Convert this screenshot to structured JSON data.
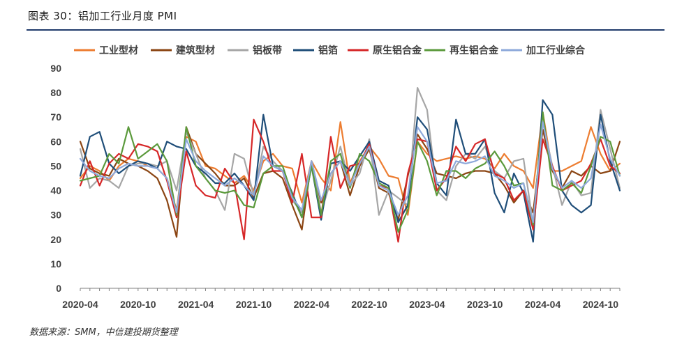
{
  "title": "图表 30：铝加工行业月度 PMI",
  "source": "数据来源：SMM，中信建投期货整理",
  "chart_data": {
    "type": "line",
    "ylim": [
      0,
      90
    ],
    "yticks": [
      0,
      10,
      20,
      30,
      40,
      50,
      60,
      70,
      80,
      90
    ],
    "xtick_labels": [
      "2020-04",
      "2020-10",
      "2021-04",
      "2021-10",
      "2022-04",
      "2022-10",
      "2023-04",
      "2023-10",
      "2024-04",
      "2024-10"
    ],
    "legend_position": "top",
    "x": [
      "2020-04",
      "2020-05",
      "2020-06",
      "2020-07",
      "2020-08",
      "2020-09",
      "2020-10",
      "2020-11",
      "2020-12",
      "2021-01",
      "2021-02",
      "2021-03",
      "2021-04",
      "2021-05",
      "2021-06",
      "2021-07",
      "2021-08",
      "2021-09",
      "2021-10",
      "2021-11",
      "2021-12",
      "2022-01",
      "2022-02",
      "2022-03",
      "2022-04",
      "2022-05",
      "2022-06",
      "2022-07",
      "2022-08",
      "2022-09",
      "2022-10",
      "2022-11",
      "2022-12",
      "2023-01",
      "2023-02",
      "2023-03",
      "2023-04",
      "2023-05",
      "2023-06",
      "2023-07",
      "2023-08",
      "2023-09",
      "2023-10",
      "2023-11",
      "2023-12",
      "2024-01",
      "2024-02",
      "2024-03",
      "2024-04",
      "2024-05",
      "2024-06",
      "2024-07",
      "2024-08",
      "2024-09",
      "2024-10",
      "2024-11",
      "2024-12"
    ],
    "series": [
      {
        "name": "工业型材",
        "color": "#ED7D31",
        "values": [
          45,
          50,
          48,
          44,
          50,
          53,
          52,
          50,
          49,
          45,
          32,
          62,
          60,
          50,
          49,
          46,
          43,
          46,
          40,
          52,
          55,
          50,
          49,
          35,
          52,
          45,
          40,
          68,
          43,
          52,
          58,
          53,
          46,
          45,
          30,
          60,
          55,
          52,
          53,
          54,
          53,
          54,
          53,
          49,
          55,
          50,
          48,
          41,
          72,
          48,
          48,
          50,
          52,
          66,
          55,
          48,
          51
        ]
      },
      {
        "name": "建筑型材",
        "color": "#8B4513",
        "values": [
          60,
          49,
          47,
          46,
          53,
          51,
          50,
          48,
          45,
          36,
          21,
          66,
          55,
          51,
          47,
          42,
          42,
          45,
          37,
          47,
          48,
          45,
          34,
          24,
          52,
          35,
          47,
          52,
          38,
          50,
          57,
          41,
          39,
          28,
          46,
          63,
          57,
          47,
          46,
          45,
          47,
          48,
          48,
          47,
          42,
          35,
          40,
          31,
          65,
          48,
          41,
          48,
          46,
          50,
          47,
          48,
          60
        ]
      },
      {
        "name": "铝板带",
        "color": "#A6A6A6",
        "values": [
          57,
          41,
          45,
          44,
          41,
          50,
          51,
          51,
          50,
          52,
          40,
          64,
          55,
          45,
          40,
          32,
          55,
          53,
          38,
          58,
          52,
          48,
          36,
          31,
          52,
          31,
          44,
          58,
          42,
          47,
          61,
          30,
          40,
          37,
          34,
          82,
          73,
          40,
          36,
          50,
          55,
          53,
          58,
          48,
          45,
          52,
          53,
          26,
          68,
          50,
          34,
          44,
          38,
          39,
          73,
          57,
          41
        ]
      },
      {
        "name": "铝箔",
        "color": "#1F4E79",
        "values": [
          46,
          62,
          64,
          51,
          47,
          50,
          52,
          51,
          49,
          60,
          58,
          57,
          50,
          47,
          43,
          43,
          47,
          42,
          36,
          71,
          50,
          48,
          39,
          29,
          50,
          28,
          51,
          52,
          48,
          54,
          60,
          44,
          42,
          27,
          34,
          70,
          65,
          43,
          38,
          69,
          55,
          55,
          61,
          39,
          31,
          47,
          39,
          19,
          77,
          71,
          40,
          34,
          31,
          34,
          71,
          52,
          40
        ]
      },
      {
        "name": "原生铝合金",
        "color": "#D62728",
        "values": [
          42,
          52,
          42,
          51,
          55,
          53,
          59,
          58,
          56,
          44,
          29,
          56,
          42,
          38,
          37,
          49,
          43,
          20,
          69,
          60,
          48,
          48,
          35,
          55,
          29,
          29,
          62,
          41,
          50,
          51,
          59,
          42,
          41,
          19,
          47,
          61,
          60,
          40,
          45,
          58,
          52,
          59,
          61,
          47,
          45,
          36,
          40,
          24,
          61,
          50,
          40,
          42,
          44,
          51,
          61,
          50,
          47
        ]
      },
      {
        "name": "再生铝合金",
        "color": "#5B9A3C",
        "values": [
          44,
          45,
          46,
          55,
          51,
          66,
          53,
          56,
          59,
          52,
          30,
          66,
          50,
          45,
          40,
          39,
          40,
          34,
          33,
          47,
          50,
          50,
          38,
          29,
          50,
          30,
          52,
          55,
          41,
          55,
          52,
          43,
          41,
          23,
          32,
          60,
          52,
          38,
          48,
          48,
          45,
          49,
          51,
          56,
          50,
          42,
          43,
          26,
          72,
          42,
          40,
          43,
          39,
          50,
          62,
          60,
          46
        ]
      },
      {
        "name": "加工行业综合",
        "color": "#8EA9DB",
        "values": [
          53,
          48,
          46,
          45,
          49,
          51,
          50,
          50,
          49,
          45,
          31,
          61,
          52,
          48,
          45,
          42,
          45,
          42,
          38,
          54,
          50,
          48,
          37,
          32,
          52,
          36,
          47,
          52,
          42,
          51,
          58,
          42,
          40,
          30,
          38,
          66,
          60,
          43,
          44,
          52,
          51,
          52,
          54,
          46,
          44,
          41,
          43,
          27,
          68,
          49,
          41,
          44,
          41,
          45,
          67,
          53,
          46
        ]
      }
    ]
  }
}
